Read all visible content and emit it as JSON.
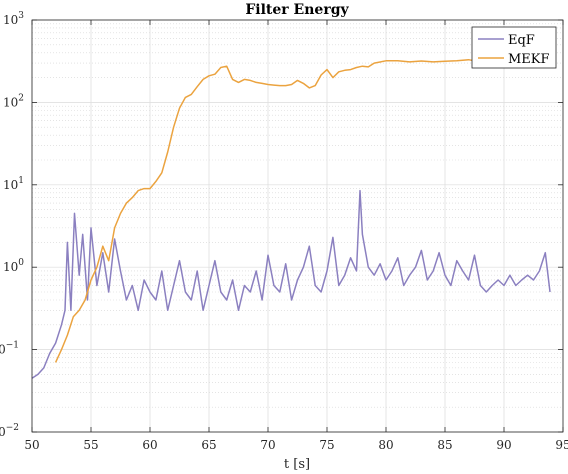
{
  "chart_data": {
    "type": "line",
    "title": "Filter Energy",
    "xlabel": "t [s]",
    "ylabel": "",
    "xlim": [
      50,
      95
    ],
    "ylim": [
      0.01,
      1000
    ],
    "yscale": "log",
    "grid": true,
    "legend_position": "top-right",
    "x_ticks": [
      "50",
      "55",
      "60",
      "65",
      "70",
      "75",
      "80",
      "85",
      "90",
      "95"
    ],
    "y_ticks": [
      {
        "base": "10",
        "exp": "−2"
      },
      {
        "base": "10",
        "exp": "−1"
      },
      {
        "base": "10",
        "exp": "0"
      },
      {
        "base": "10",
        "exp": "1"
      },
      {
        "base": "10",
        "exp": "2"
      },
      {
        "base": "10",
        "exp": "3"
      }
    ],
    "series": [
      {
        "name": "EqF",
        "color": "#8B80C0",
        "x": [
          50.0,
          50.5,
          51.0,
          51.5,
          52.0,
          52.5,
          52.8,
          53.0,
          53.3,
          53.6,
          54.0,
          54.3,
          54.7,
          55.0,
          55.5,
          56.0,
          56.5,
          57.0,
          57.5,
          58.0,
          58.5,
          59.0,
          59.5,
          60.0,
          60.5,
          61.0,
          61.5,
          62.0,
          62.5,
          63.0,
          63.5,
          64.0,
          64.5,
          65.0,
          65.5,
          66.0,
          66.5,
          67.0,
          67.5,
          68.0,
          68.5,
          69.0,
          69.5,
          70.0,
          70.5,
          71.0,
          71.5,
          72.0,
          72.5,
          73.0,
          73.5,
          74.0,
          74.5,
          75.0,
          75.5,
          76.0,
          76.5,
          77.0,
          77.5,
          77.8,
          78.0,
          78.5,
          79.0,
          79.5,
          80.0,
          80.5,
          81.0,
          81.5,
          82.0,
          82.5,
          83.0,
          83.5,
          84.0,
          84.5,
          85.0,
          85.5,
          86.0,
          86.5,
          87.0,
          87.5,
          88.0,
          88.5,
          89.0,
          89.5,
          90.0,
          90.5,
          91.0,
          91.5,
          92.0,
          92.5,
          93.0,
          93.5,
          93.9
        ],
        "values": [
          0.045,
          0.05,
          0.06,
          0.09,
          0.12,
          0.2,
          0.3,
          2.0,
          0.3,
          4.5,
          0.8,
          2.5,
          0.4,
          3.0,
          0.6,
          1.5,
          0.5,
          2.2,
          0.9,
          0.4,
          0.6,
          0.3,
          0.7,
          0.5,
          0.4,
          0.9,
          0.3,
          0.6,
          1.2,
          0.5,
          0.4,
          0.9,
          0.3,
          0.6,
          1.2,
          0.5,
          0.4,
          0.7,
          0.3,
          0.6,
          0.5,
          0.9,
          0.4,
          1.4,
          0.6,
          0.5,
          1.1,
          0.4,
          0.7,
          1.0,
          1.8,
          0.6,
          0.5,
          0.9,
          2.3,
          0.6,
          0.8,
          1.3,
          0.9,
          8.5,
          2.5,
          1.0,
          0.8,
          1.1,
          0.7,
          0.9,
          1.3,
          0.6,
          0.8,
          1.0,
          1.6,
          0.7,
          0.9,
          1.5,
          0.8,
          0.6,
          1.2,
          0.9,
          0.7,
          1.4,
          0.6,
          0.5,
          0.6,
          0.7,
          0.6,
          0.8,
          0.6,
          0.7,
          0.8,
          0.7,
          0.9,
          1.5,
          0.5
        ]
      },
      {
        "name": "MEKF",
        "color": "#EBA33F",
        "x": [
          52.0,
          52.5,
          53.0,
          53.5,
          54.0,
          54.5,
          55.0,
          55.5,
          56.0,
          56.5,
          57.0,
          57.5,
          58.0,
          58.5,
          59.0,
          59.5,
          60.0,
          60.5,
          61.0,
          61.5,
          62.0,
          62.5,
          63.0,
          63.5,
          64.0,
          64.5,
          65.0,
          65.5,
          66.0,
          66.5,
          67.0,
          67.5,
          68.0,
          68.5,
          69.0,
          69.5,
          70.0,
          70.5,
          71.0,
          71.5,
          72.0,
          72.5,
          73.0,
          73.5,
          74.0,
          74.5,
          75.0,
          75.5,
          76.0,
          76.5,
          77.0,
          77.5,
          78.0,
          78.5,
          79.0,
          80.0,
          81.0,
          82.0,
          83.0,
          84.0,
          85.0,
          86.0,
          87.0,
          87.5,
          88.0
        ],
        "values": [
          0.07,
          0.1,
          0.15,
          0.25,
          0.3,
          0.4,
          0.7,
          1.0,
          1.8,
          1.2,
          3.0,
          4.5,
          6.0,
          7.0,
          8.5,
          9.0,
          9.0,
          11.0,
          14.0,
          25.0,
          50.0,
          85.0,
          115.0,
          125.0,
          155.0,
          190.0,
          210.0,
          220.0,
          265.0,
          275.0,
          190.0,
          175.0,
          190.0,
          185.0,
          175.0,
          170.0,
          165.0,
          162.0,
          160.0,
          160.0,
          165.0,
          185.0,
          170.0,
          150.0,
          160.0,
          215.0,
          250.0,
          200.0,
          235.0,
          245.0,
          250.0,
          265.0,
          275.0,
          270.0,
          300.0,
          320.0,
          320.0,
          310.0,
          318.0,
          310.0,
          315.0,
          320.0,
          330.0,
          320.0,
          315.0
        ]
      }
    ]
  }
}
